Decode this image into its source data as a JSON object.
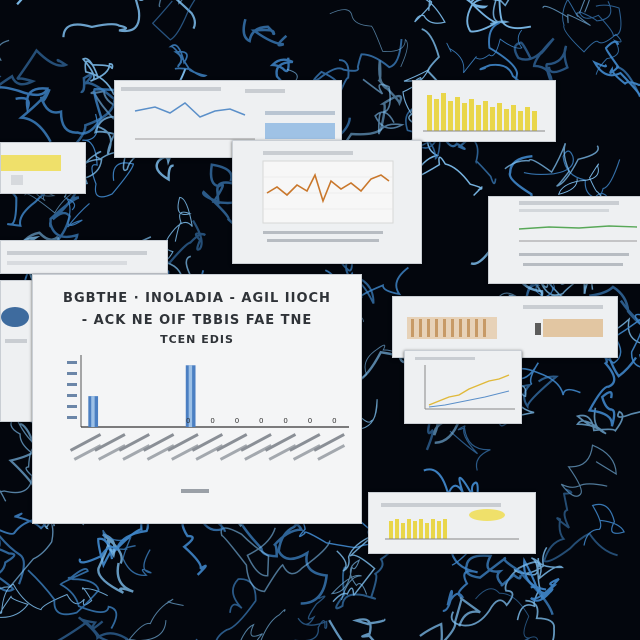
{
  "background": {
    "color": "#03060d",
    "vein_color": "#3f86c9",
    "vein_color_light": "#7fc0f0"
  },
  "main_chart": {
    "title_lines": [
      "BGBTHE · INOLADIA - AGIL IIOCH",
      "- ACK NE OIF TBBIS FAE TNE",
      "TCEN EDIS"
    ],
    "bar_color": "#4b7fc2",
    "tick_labels": [
      "0",
      "0",
      "0",
      "0",
      "0",
      "0",
      "0"
    ]
  },
  "chart_data": {
    "type": "bar",
    "categories": [
      "",
      "",
      "",
      "",
      "",
      "",
      "",
      "",
      "",
      "",
      ""
    ],
    "values": [
      30,
      0,
      0,
      0,
      60,
      0,
      0,
      0,
      0,
      0,
      0
    ],
    "title": "BGBTHE · INOLADIA - AGIL IIOCH - ACK NE OIF TBBIS FAE TNE TCEN EDIS",
    "xlabel": "",
    "ylabel": "",
    "ylim": [
      0,
      70
    ]
  },
  "accent_colors": {
    "yellow_bars": "#e9d64a",
    "orange_line": "#c9772b",
    "tan_bars": "#d8b48a",
    "green_line": "#58a858",
    "blue_line": "#5a8fc9"
  }
}
